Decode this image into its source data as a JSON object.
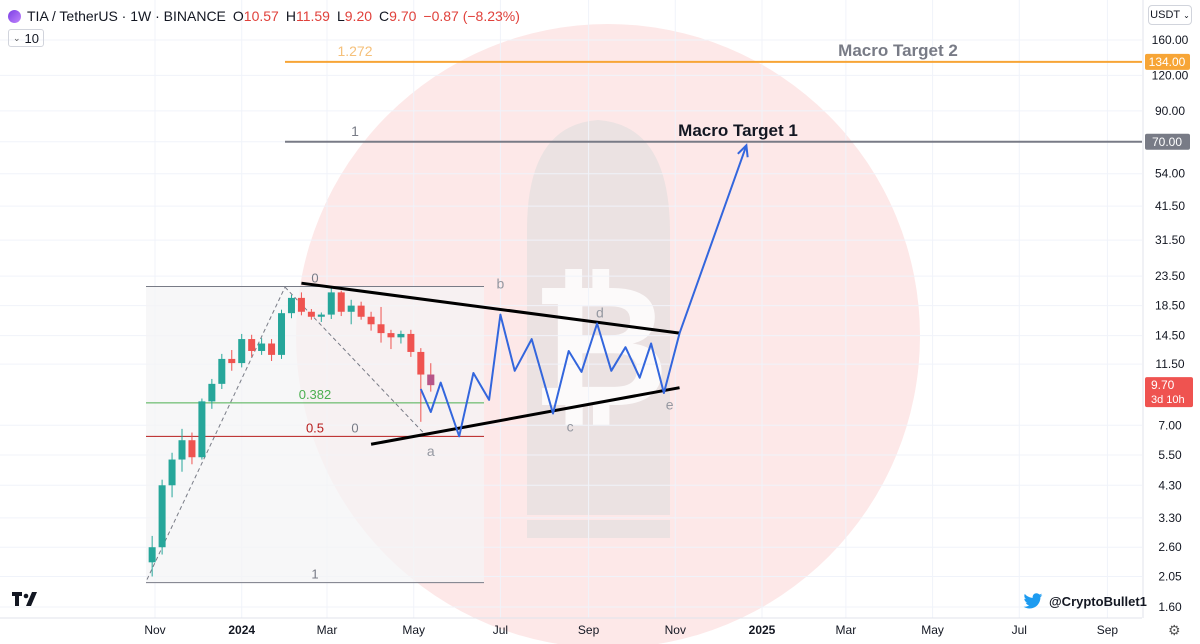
{
  "header": {
    "symbol": "TIA / TetherUS · 1W · BINANCE",
    "open_label": "O",
    "open": "10.57",
    "high_label": "H",
    "high": "11.59",
    "low_label": "L",
    "low": "9.20",
    "close_label": "C",
    "close": "9.70",
    "change": "−0.87 (−8.23%)"
  },
  "interval": "10",
  "currency": "USDT",
  "watermark_handle": "@CryptoBullet1",
  "colors": {
    "up": "#26a69a",
    "down": "#ef5350",
    "projection": "#3366dd",
    "target1": "#787b86",
    "target2": "#f7a536",
    "fib_0382": "#4caf50",
    "fib_05": "#b71c1c"
  },
  "chart_data": {
    "type": "candlestick",
    "y_scale": "log",
    "ylim": [
      1.45,
      200
    ],
    "y_ticks": [
      "160.00",
      "120.00",
      "90.00",
      "70.00",
      "54.00",
      "41.50",
      "31.50",
      "23.50",
      "18.50",
      "14.50",
      "11.50",
      "7.00",
      "5.50",
      "4.30",
      "3.30",
      "2.60",
      "2.05",
      "1.60"
    ],
    "x_ticks": [
      "Nov",
      "2024",
      "Mar",
      "May",
      "Jul",
      "Sep",
      "Nov",
      "2025",
      "Mar",
      "May",
      "Jul",
      "Sep"
    ],
    "x_tick_dates": [
      "2023-11-01",
      "2024-01-01",
      "2024-03-01",
      "2024-05-01",
      "2024-07-01",
      "2024-09-01",
      "2024-11-01",
      "2025-01-01",
      "2025-03-01",
      "2025-05-01",
      "2025-07-01",
      "2025-09-01"
    ],
    "candles": [
      {
        "date": "2023-10-30",
        "o": 2.3,
        "h": 2.85,
        "l": 2.05,
        "c": 2.6
      },
      {
        "date": "2023-11-06",
        "o": 2.6,
        "h": 4.5,
        "l": 2.45,
        "c": 4.3
      },
      {
        "date": "2023-11-13",
        "o": 4.3,
        "h": 5.6,
        "l": 3.9,
        "c": 5.3
      },
      {
        "date": "2023-11-20",
        "o": 5.3,
        "h": 6.8,
        "l": 4.8,
        "c": 6.2
      },
      {
        "date": "2023-11-27",
        "o": 6.2,
        "h": 6.6,
        "l": 5.1,
        "c": 5.4
      },
      {
        "date": "2023-12-04",
        "o": 5.4,
        "h": 8.7,
        "l": 5.3,
        "c": 8.5
      },
      {
        "date": "2023-12-11",
        "o": 8.5,
        "h": 10.2,
        "l": 8.0,
        "c": 9.8
      },
      {
        "date": "2023-12-18",
        "o": 9.8,
        "h": 12.5,
        "l": 9.4,
        "c": 12.0
      },
      {
        "date": "2023-12-25",
        "o": 12.0,
        "h": 12.9,
        "l": 10.9,
        "c": 11.6
      },
      {
        "date": "2024-01-01",
        "o": 11.6,
        "h": 14.7,
        "l": 11.2,
        "c": 14.1
      },
      {
        "date": "2024-01-08",
        "o": 14.1,
        "h": 14.6,
        "l": 12.2,
        "c": 12.8
      },
      {
        "date": "2024-01-15",
        "o": 12.8,
        "h": 14.2,
        "l": 12.4,
        "c": 13.6
      },
      {
        "date": "2024-01-22",
        "o": 13.6,
        "h": 14.1,
        "l": 11.8,
        "c": 12.4
      },
      {
        "date": "2024-01-29",
        "o": 12.4,
        "h": 17.9,
        "l": 12.0,
        "c": 17.4
      },
      {
        "date": "2024-02-05",
        "o": 17.4,
        "h": 20.2,
        "l": 16.7,
        "c": 19.7
      },
      {
        "date": "2024-02-12",
        "o": 19.7,
        "h": 20.6,
        "l": 17.1,
        "c": 17.6
      },
      {
        "date": "2024-02-19",
        "o": 17.6,
        "h": 18.0,
        "l": 16.5,
        "c": 16.9
      },
      {
        "date": "2024-02-26",
        "o": 16.9,
        "h": 17.5,
        "l": 16.2,
        "c": 17.2
      },
      {
        "date": "2024-03-04",
        "o": 17.2,
        "h": 21.6,
        "l": 16.6,
        "c": 20.6
      },
      {
        "date": "2024-03-11",
        "o": 20.6,
        "h": 20.9,
        "l": 17.0,
        "c": 17.6
      },
      {
        "date": "2024-03-18",
        "o": 17.6,
        "h": 19.4,
        "l": 15.9,
        "c": 18.5
      },
      {
        "date": "2024-03-25",
        "o": 18.5,
        "h": 19.1,
        "l": 16.5,
        "c": 16.9
      },
      {
        "date": "2024-04-01",
        "o": 16.9,
        "h": 17.6,
        "l": 15.1,
        "c": 15.9
      },
      {
        "date": "2024-04-08",
        "o": 15.9,
        "h": 18.3,
        "l": 13.7,
        "c": 14.8
      },
      {
        "date": "2024-04-15",
        "o": 14.8,
        "h": 15.2,
        "l": 13.0,
        "c": 14.3
      },
      {
        "date": "2024-04-22",
        "o": 14.3,
        "h": 15.1,
        "l": 13.6,
        "c": 14.7
      },
      {
        "date": "2024-04-29",
        "o": 14.7,
        "h": 15.2,
        "l": 12.2,
        "c": 12.7
      },
      {
        "date": "2024-05-06",
        "o": 12.7,
        "h": 13.1,
        "l": 7.2,
        "c": 10.57
      },
      {
        "date": "2024-05-13",
        "o": 10.57,
        "h": 11.59,
        "l": 9.2,
        "c": 9.7
      }
    ],
    "horizontal_lines": [
      {
        "label": "1.272",
        "text": "Macro Target 2",
        "value": 134.0,
        "price_label": "134.00",
        "color": "#f7a536"
      },
      {
        "label": "1",
        "text": "Macro Target 1",
        "value": 70.0,
        "price_label": "70.00",
        "color": "#787b86"
      }
    ],
    "fib_retracement": {
      "levels": [
        {
          "ratio": "0",
          "value": 21.6,
          "color": "#787b86"
        },
        {
          "ratio": "0.382",
          "value": 8.4,
          "color": "#4caf50"
        },
        {
          "ratio": "0.5",
          "value": 6.4,
          "color": "#b71c1c"
        },
        {
          "ratio": "1",
          "value": 1.95,
          "color": "#787b86"
        }
      ],
      "extra_label": "0"
    },
    "triangle": {
      "upper": [
        {
          "date": "2024-02-12",
          "value": 22.2
        },
        {
          "date": "2024-11-04",
          "value": 14.8
        }
      ],
      "lower": [
        {
          "date": "2024-04-01",
          "value": 6.0
        },
        {
          "date": "2024-11-04",
          "value": 9.5
        }
      ]
    },
    "wave_labels": [
      {
        "text": "a",
        "date": "2024-05-13",
        "value": 5.45
      },
      {
        "text": "b",
        "date": "2024-07-01",
        "value": 21.3
      },
      {
        "text": "c",
        "date": "2024-08-19",
        "value": 6.65
      },
      {
        "text": "d",
        "date": "2024-09-09",
        "value": 16.8
      },
      {
        "text": "e",
        "date": "2024-10-28",
        "value": 7.95
      }
    ],
    "projection_path": [
      {
        "date": "2024-05-06",
        "value": 9.4
      },
      {
        "date": "2024-05-13",
        "value": 7.8
      },
      {
        "date": "2024-05-20",
        "value": 9.9
      },
      {
        "date": "2024-06-02",
        "value": 6.4
      },
      {
        "date": "2024-06-12",
        "value": 10.7
      },
      {
        "date": "2024-06-23",
        "value": 8.6
      },
      {
        "date": "2024-07-01",
        "value": 17.2
      },
      {
        "date": "2024-07-11",
        "value": 10.9
      },
      {
        "date": "2024-07-23",
        "value": 14.1
      },
      {
        "date": "2024-08-07",
        "value": 7.7
      },
      {
        "date": "2024-08-18",
        "value": 12.8
      },
      {
        "date": "2024-08-27",
        "value": 10.8
      },
      {
        "date": "2024-09-07",
        "value": 16.0
      },
      {
        "date": "2024-09-17",
        "value": 10.9
      },
      {
        "date": "2024-09-27",
        "value": 13.2
      },
      {
        "date": "2024-10-07",
        "value": 10.3
      },
      {
        "date": "2024-10-15",
        "value": 13.6
      },
      {
        "date": "2024-10-24",
        "value": 9.1
      },
      {
        "date": "2024-11-04",
        "value": 14.8
      },
      {
        "date": "2024-12-21",
        "value": 68.0
      }
    ],
    "current_price": {
      "value": "9.70",
      "countdown": "3d 10h",
      "numeric": 9.7
    }
  }
}
